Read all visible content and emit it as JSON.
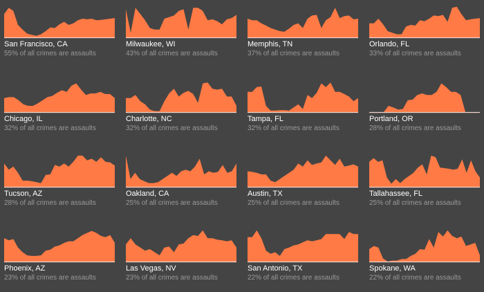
{
  "colors": {
    "background": "#444444",
    "area": "#ff7a45",
    "baseline": "#f2d4cc",
    "title": "#ffffff",
    "subtitle": "#9a9a9a"
  },
  "chart_data": {
    "type": "area",
    "layout": "small-multiples 4x4",
    "ylim": [
      0,
      100
    ],
    "panels": [
      {
        "city": "San Francisco, CA",
        "subtitle": "55% of all crimes are assaults",
        "values": [
          75,
          95,
          85,
          40,
          25,
          12,
          8,
          5,
          10,
          20,
          32,
          30,
          42,
          50,
          40,
          45,
          55,
          60,
          58,
          60,
          55,
          56,
          58,
          60,
          62
        ]
      },
      {
        "city": "Milwaukee, WI",
        "subtitle": "43% of all crimes are assaults",
        "values": [
          90,
          15,
          95,
          75,
          55,
          30,
          25,
          25,
          60,
          65,
          70,
          85,
          90,
          25,
          95,
          95,
          85,
          55,
          58,
          52,
          42,
          58,
          62,
          72
        ]
      },
      {
        "city": "Memphis, TN",
        "subtitle": "37% of all crimes are assaults",
        "values": [
          60,
          55,
          55,
          45,
          38,
          30,
          25,
          20,
          18,
          28,
          40,
          45,
          30,
          60,
          70,
          72,
          30,
          55,
          65,
          95,
          62,
          68,
          70,
          58,
          60
        ]
      },
      {
        "city": "Orlando, FL",
        "subtitle": "33% of all crimes are assaults",
        "values": [
          45,
          45,
          60,
          42,
          20,
          15,
          10,
          10,
          35,
          40,
          38,
          55,
          52,
          60,
          70,
          68,
          72,
          50,
          95,
          98,
          75,
          55,
          58,
          60,
          62
        ]
      },
      {
        "city": "Chicago, IL",
        "subtitle": "32% of all crimes are assaults",
        "values": [
          45,
          48,
          48,
          38,
          25,
          20,
          20,
          28,
          38,
          48,
          52,
          62,
          70,
          65,
          85,
          92,
          72,
          55,
          60,
          60,
          65,
          58,
          58,
          45
        ]
      },
      {
        "city": "Charlotte, NC",
        "subtitle": "32% of all crimes are assaults",
        "values": [
          45,
          45,
          55,
          35,
          25,
          8,
          3,
          3,
          35,
          60,
          75,
          50,
          62,
          68,
          58,
          30,
          92,
          95,
          75,
          72,
          75,
          50,
          50,
          20
        ]
      },
      {
        "city": "Tampa, FL",
        "subtitle": "32% of all crimes are assaults",
        "values": [
          65,
          65,
          80,
          82,
          20,
          5,
          5,
          6,
          6,
          5,
          15,
          25,
          10,
          55,
          45,
          62,
          92,
          80,
          95,
          65,
          65,
          58,
          50,
          35,
          45
        ]
      },
      {
        "city": "Portland, OR",
        "subtitle": "28% of all crimes are assaults",
        "values": [
          0,
          0,
          0,
          0,
          20,
          15,
          8,
          10,
          38,
          40,
          55,
          60,
          55,
          55,
          65,
          92,
          80,
          65,
          65,
          55,
          0,
          0,
          0,
          0
        ]
      },
      {
        "city": "Tucson, AZ",
        "subtitle": "28% of all crimes are assaults",
        "values": [
          75,
          55,
          65,
          45,
          20,
          20,
          18,
          15,
          12,
          38,
          40,
          70,
          65,
          75,
          65,
          80,
          100,
          100,
          85,
          90,
          80,
          95,
          80,
          78,
          68
        ]
      },
      {
        "city": "Oakland, CA",
        "subtitle": "25% of all crimes are assaults",
        "values": [
          100,
          25,
          45,
          25,
          18,
          12,
          12,
          15,
          25,
          35,
          45,
          35,
          50,
          55,
          50,
          65,
          90,
          40,
          50,
          45,
          48,
          70,
          45,
          50,
          75
        ]
      },
      {
        "city": "Austin, TX",
        "subtitle": "25% of all crimes are assaults",
        "values": [
          50,
          48,
          45,
          40,
          40,
          20,
          15,
          25,
          35,
          45,
          55,
          75,
          65,
          85,
          70,
          75,
          78,
          100,
          85,
          70,
          90,
          65,
          68,
          72,
          65
        ]
      },
      {
        "city": "Tallahassee, FL",
        "subtitle": "25% of all crimes are assaults",
        "values": [
          80,
          92,
          80,
          85,
          30,
          10,
          25,
          12,
          25,
          35,
          45,
          62,
          72,
          40,
          100,
          95,
          62,
          60,
          58,
          55,
          58,
          88,
          45,
          85,
          50,
          30
        ]
      },
      {
        "city": "Phoenix, AZ",
        "subtitle": "23% of all crimes are assaults",
        "values": [
          75,
          68,
          72,
          45,
          30,
          20,
          18,
          18,
          20,
          35,
          38,
          48,
          52,
          60,
          65,
          65,
          75,
          85,
          92,
          98,
          92,
          82,
          78,
          85,
          60
        ]
      },
      {
        "city": "Las Vegas, NV",
        "subtitle": "23% of all crimes are assaults",
        "values": [
          55,
          75,
          55,
          45,
          35,
          40,
          30,
          20,
          45,
          48,
          30,
          55,
          58,
          75,
          85,
          82,
          100,
          75,
          75,
          70,
          68,
          65,
          68,
          45
        ]
      },
      {
        "city": "San Antonio, TX",
        "subtitle": "22% of all crimes are assaults",
        "values": [
          78,
          78,
          100,
          75,
          35,
          25,
          30,
          18,
          40,
          45,
          52,
          55,
          62,
          68,
          65,
          68,
          72,
          88,
          88,
          88,
          88,
          72,
          95,
          88,
          88
        ]
      },
      {
        "city": "Spokane, WA",
        "subtitle": "22% of all crimes are assaults",
        "values": [
          40,
          50,
          45,
          10,
          0,
          3,
          3,
          8,
          8,
          18,
          25,
          40,
          38,
          72,
          45,
          95,
          80,
          100,
          82,
          75,
          80,
          50,
          55,
          60,
          20
        ]
      }
    ]
  }
}
